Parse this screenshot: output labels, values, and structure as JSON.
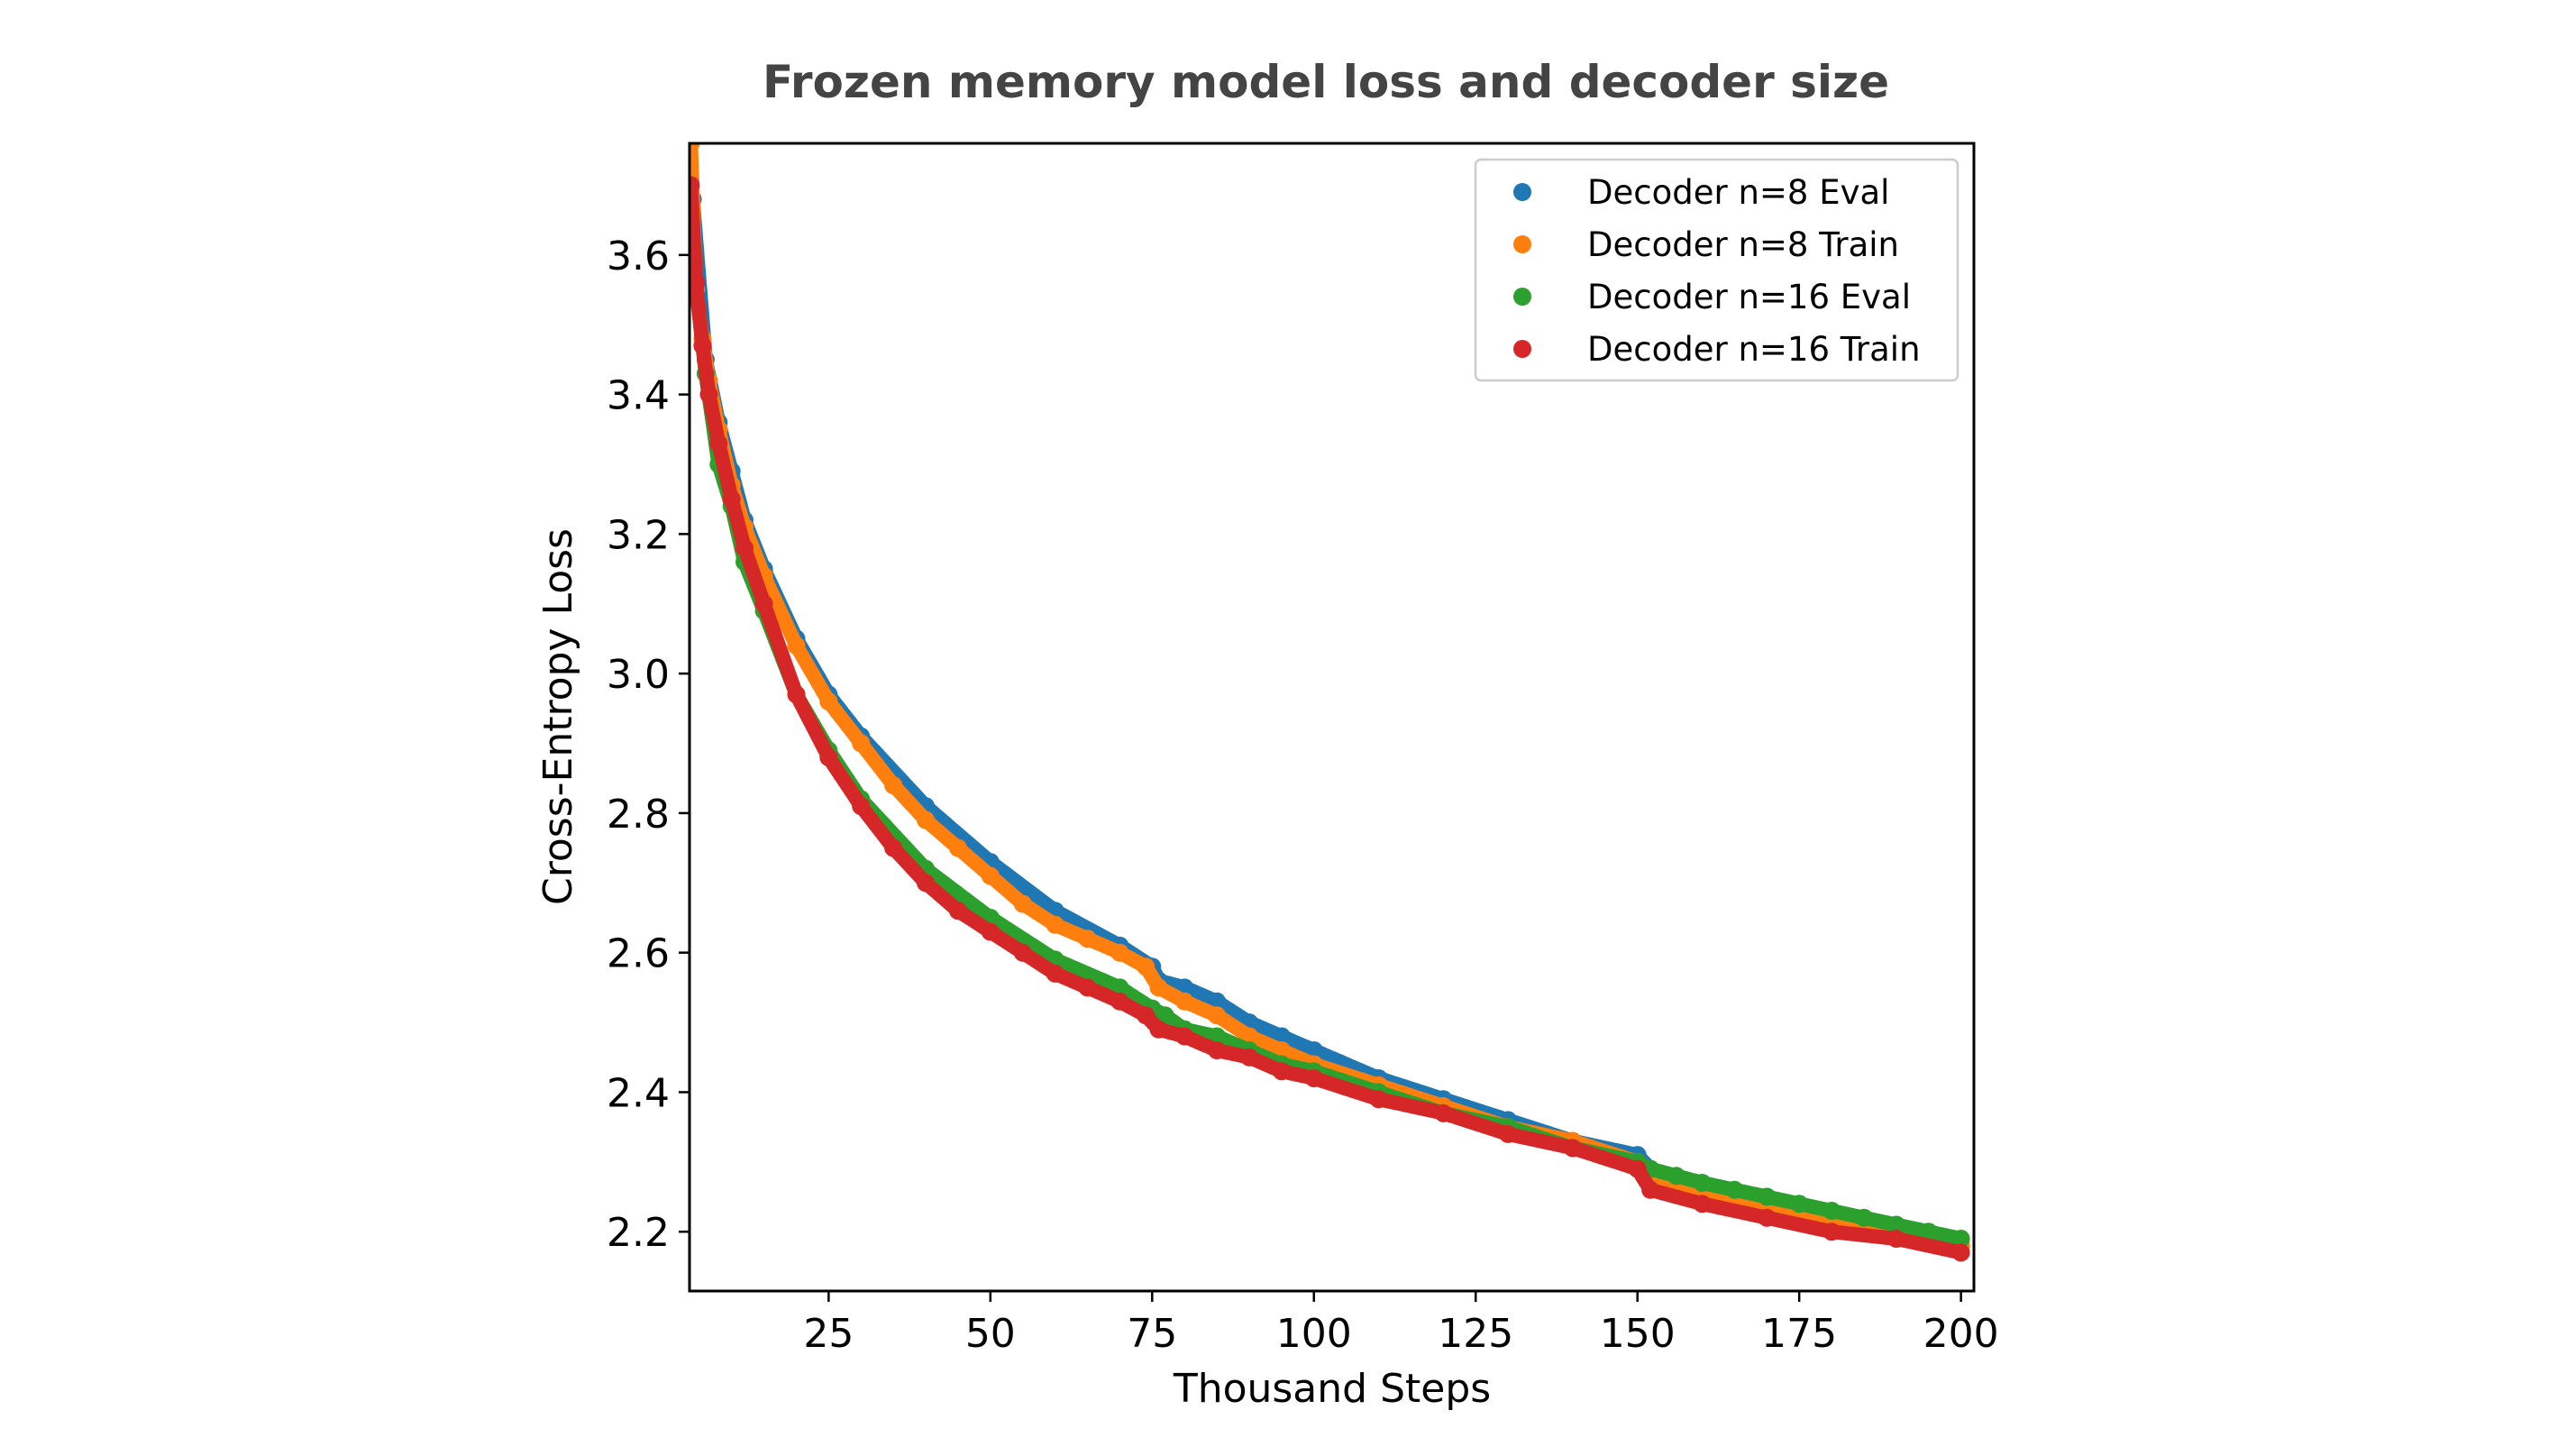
{
  "chart_data": {
    "type": "scatter",
    "title": "Frozen memory model loss and decoder size",
    "xlabel": "Thousand Steps",
    "ylabel": "Cross-Entropy Loss",
    "xlim": [
      3.5,
      202
    ],
    "ylim": [
      2.115,
      3.76
    ],
    "xticks": [
      25,
      50,
      75,
      100,
      125,
      150,
      175,
      200
    ],
    "yticks": [
      2.2,
      2.4,
      2.6,
      2.8,
      3.0,
      3.2,
      3.4,
      3.6
    ],
    "grid": false,
    "legend_position": "top-right",
    "series": [
      {
        "name": "Decoder n=8 Eval",
        "color": "#1f77b4",
        "x": [
          4,
          6,
          8,
          10,
          12,
          15,
          20,
          25,
          30,
          40,
          50,
          60,
          70,
          75,
          76,
          80,
          85,
          90,
          95,
          100,
          110,
          120,
          130,
          140,
          150,
          152,
          160,
          170,
          180,
          190,
          200
        ],
        "y": [
          3.68,
          3.45,
          3.36,
          3.29,
          3.22,
          3.15,
          3.05,
          2.97,
          2.91,
          2.81,
          2.73,
          2.66,
          2.61,
          2.58,
          2.56,
          2.55,
          2.53,
          2.5,
          2.48,
          2.46,
          2.42,
          2.39,
          2.36,
          2.33,
          2.31,
          2.29,
          2.27,
          2.25,
          2.22,
          2.2,
          2.18
        ]
      },
      {
        "name": "Decoder n=8 Train",
        "color": "#ff7f0e",
        "x": [
          3.7,
          4.5,
          5.5,
          6.5,
          8,
          10,
          12,
          15,
          20,
          25,
          30,
          35,
          40,
          45,
          50,
          55,
          60,
          65,
          70,
          74,
          76,
          80,
          85,
          90,
          95,
          100,
          110,
          120,
          130,
          140,
          150,
          152,
          160,
          170,
          180,
          190,
          200
        ],
        "y": [
          3.76,
          3.55,
          3.48,
          3.42,
          3.35,
          3.27,
          3.21,
          3.14,
          3.04,
          2.96,
          2.9,
          2.84,
          2.79,
          2.75,
          2.71,
          2.67,
          2.64,
          2.62,
          2.6,
          2.58,
          2.55,
          2.53,
          2.51,
          2.48,
          2.46,
          2.44,
          2.41,
          2.38,
          2.35,
          2.33,
          2.3,
          2.28,
          2.26,
          2.24,
          2.22,
          2.2,
          2.18
        ]
      },
      {
        "name": "Decoder n=16 Eval",
        "color": "#2ca02c",
        "x": [
          4,
          6,
          8,
          10,
          12,
          15,
          20,
          25,
          30,
          40,
          50,
          60,
          70,
          75,
          77,
          80,
          85,
          90,
          95,
          100,
          110,
          120,
          130,
          140,
          150,
          152,
          156,
          160,
          165,
          170,
          175,
          180,
          185,
          190,
          195,
          200
        ],
        "y": [
          3.6,
          3.43,
          3.3,
          3.24,
          3.16,
          3.09,
          2.97,
          2.89,
          2.82,
          2.72,
          2.65,
          2.59,
          2.55,
          2.52,
          2.51,
          2.49,
          2.48,
          2.46,
          2.44,
          2.43,
          2.4,
          2.37,
          2.35,
          2.32,
          2.3,
          2.29,
          2.28,
          2.27,
          2.26,
          2.25,
          2.24,
          2.23,
          2.22,
          2.21,
          2.2,
          2.19
        ]
      },
      {
        "name": "Decoder n=16 Train",
        "color": "#d62728",
        "x": [
          3.7,
          4.5,
          5.5,
          6.5,
          8,
          10,
          12,
          15,
          20,
          25,
          30,
          35,
          40,
          45,
          50,
          55,
          60,
          65,
          70,
          74,
          76,
          80,
          85,
          90,
          95,
          100,
          110,
          120,
          130,
          140,
          150,
          152,
          160,
          170,
          180,
          190,
          200
        ],
        "y": [
          3.7,
          3.56,
          3.47,
          3.4,
          3.33,
          3.25,
          3.18,
          3.1,
          2.97,
          2.88,
          2.81,
          2.75,
          2.7,
          2.66,
          2.63,
          2.6,
          2.57,
          2.55,
          2.53,
          2.51,
          2.49,
          2.48,
          2.46,
          2.45,
          2.43,
          2.42,
          2.39,
          2.37,
          2.34,
          2.32,
          2.29,
          2.26,
          2.24,
          2.22,
          2.2,
          2.19,
          2.17
        ]
      }
    ]
  }
}
